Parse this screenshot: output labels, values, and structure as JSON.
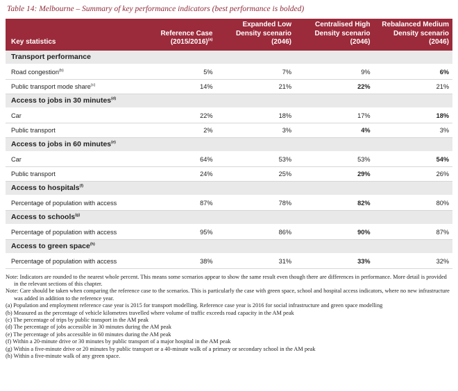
{
  "caption": "Table 14: Melbourne – Summary of key performance indicators (best performance is bolded)",
  "headers": [
    {
      "text": "Key statistics",
      "sup": ""
    },
    {
      "text": "Reference Case (2015/2016)",
      "sup": "(a)"
    },
    {
      "text": "Expanded Low Density scenario (2046)",
      "sup": ""
    },
    {
      "text": "Centralised High Density scenario (2046)",
      "sup": ""
    },
    {
      "text": "Rebalanced Medium Density scenario (2046)",
      "sup": ""
    }
  ],
  "sections": [
    {
      "title": "Transport performance",
      "sup": "",
      "rows": [
        {
          "label": "Road congestion",
          "sup": "(b)",
          "values": [
            "5%",
            "7%",
            "9%",
            "6%"
          ],
          "best": 3
        },
        {
          "label": "Public transport mode share",
          "sup": "(c)",
          "values": [
            "14%",
            "21%",
            "22%",
            "21%"
          ],
          "best": 2
        }
      ]
    },
    {
      "title": "Access to jobs in 30 minutes",
      "sup": "(d)",
      "rows": [
        {
          "label": "Car",
          "sup": "",
          "values": [
            "22%",
            "18%",
            "17%",
            "18%"
          ],
          "best": 3
        },
        {
          "label": "Public transport",
          "sup": "",
          "values": [
            "2%",
            "3%",
            "4%",
            "3%"
          ],
          "best": 2
        }
      ]
    },
    {
      "title": "Access to jobs in 60 minutes",
      "sup": "(e)",
      "rows": [
        {
          "label": "Car",
          "sup": "",
          "values": [
            "64%",
            "53%",
            "53%",
            "54%"
          ],
          "best": 3
        },
        {
          "label": "Public transport",
          "sup": "",
          "values": [
            "24%",
            "25%",
            "29%",
            "26%"
          ],
          "best": 2
        }
      ]
    },
    {
      "title": "Access to hospitals",
      "sup": "(f)",
      "rows": [
        {
          "label": "Percentage of population with access",
          "sup": "",
          "values": [
            "87%",
            "78%",
            "82%",
            "80%"
          ],
          "best": 2
        }
      ]
    },
    {
      "title": "Access to schools",
      "sup": "(g)",
      "rows": [
        {
          "label": "Percentage of population with access",
          "sup": "",
          "values": [
            "95%",
            "86%",
            "90%",
            "87%"
          ],
          "best": 2
        }
      ]
    },
    {
      "title": "Access to green space",
      "sup": "(h)",
      "rows": [
        {
          "label": "Percentage of population with access",
          "sup": "",
          "values": [
            "38%",
            "31%",
            "33%",
            "32%"
          ],
          "best": 2
        }
      ]
    }
  ],
  "notes": [
    "Note: Indicators are rounded to the nearest whole percent. This means some scenarios appear to show the same result even though there are differences in performance. More detail is provided in the relevant sections of this chapter.",
    "Note: Care should be taken when comparing the reference case to the scenarios. This is particularly the case with green space, school and hospital access indicators, where no new infrastructure was added in addition to the reference year.",
    "(a) Population and employment reference case year is 2015 for transport modelling. Reference case year is 2016 for social infrastructure and green space modelling",
    "(b) Measured as the percentage of vehicle kilometres travelled where volume of traffic exceeds road capacity in the AM peak",
    "(c) The percentage of trips by public transport in the AM peak",
    "(d) The percentage of jobs accessible in 30 minutes during the AM peak",
    "(e) The percentage of jobs accessible in 60 minutes during the AM peak",
    "(f) Within a 20-minute drive or 30 minutes by public transport of a major hospital in the AM peak",
    "(g) Within a five-minute drive or 20 minutes by public transport or a 40-minute walk of a primary or secondary school in the AM peak",
    "(h) Within a five-minute walk of any green space."
  ],
  "colors": {
    "header": "#9b2b3b",
    "section": "#e9e9e9"
  }
}
